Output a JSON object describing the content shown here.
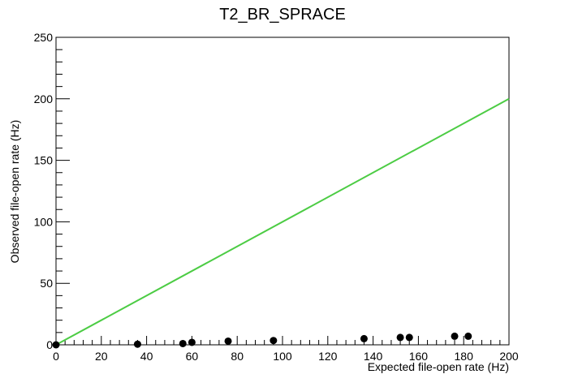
{
  "chart_data": {
    "type": "scatter",
    "title": "T2_BR_SPRACE",
    "xlabel": "Expected file-open rate (Hz)",
    "ylabel": "Observed file-open rate (Hz)",
    "xlim": [
      0,
      200
    ],
    "ylim": [
      0,
      250
    ],
    "xticks": [
      0,
      20,
      40,
      60,
      80,
      100,
      120,
      140,
      160,
      180,
      200
    ],
    "yticks": [
      0,
      50,
      100,
      150,
      200,
      250
    ],
    "grid": false,
    "marker_color": "#000000",
    "line_color": "#4ccc44",
    "series": [
      {
        "points": [
          [
            0,
            0
          ],
          [
            36,
            0.5
          ],
          [
            56,
            1
          ],
          [
            60,
            2
          ],
          [
            76,
            3
          ],
          [
            96,
            3.5
          ],
          [
            136,
            5
          ],
          [
            152,
            6
          ],
          [
            156,
            6
          ],
          [
            176,
            7
          ],
          [
            182,
            7
          ]
        ]
      }
    ],
    "reference_line": {
      "from": [
        0,
        0
      ],
      "to": [
        200,
        200
      ]
    }
  }
}
